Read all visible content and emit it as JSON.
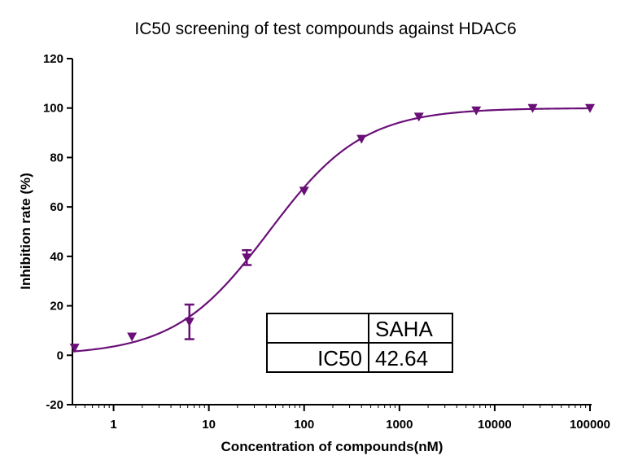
{
  "chart_data": {
    "type": "scatter",
    "title": "IC50 screening of test compounds against  HDAC6",
    "xlabel": "Concentration of compounds(nM)",
    "ylabel": "Inhibition rate (%)",
    "x_scale": "log",
    "xlim": [
      0.37,
      100000
    ],
    "ylim": [
      -20,
      120
    ],
    "x_ticks": [
      1,
      10,
      100,
      1000,
      10000,
      100000
    ],
    "x_tick_labels": [
      "1",
      "10",
      "100",
      "1000",
      "10000",
      "100000"
    ],
    "y_ticks": [
      -20,
      0,
      20,
      40,
      60,
      80,
      100,
      120
    ],
    "y_tick_labels": [
      "-20",
      "0",
      "20",
      "40",
      "60",
      "80",
      "100",
      "120"
    ],
    "grid": false,
    "series": [
      {
        "color": "#6a0f78",
        "marker": "triangle-down",
        "points": [
          {
            "x": 0.39,
            "y": 3
          },
          {
            "x": 1.56,
            "y": 7.5
          },
          {
            "x": 6.25,
            "y": 13.5,
            "err": 7
          },
          {
            "x": 25,
            "y": 39.5,
            "err": 3
          },
          {
            "x": 100,
            "y": 66.5
          },
          {
            "x": 400,
            "y": 87.5
          },
          {
            "x": 1600,
            "y": 96.5
          },
          {
            "x": 6400,
            "y": 99
          },
          {
            "x": 25000,
            "y": 100
          },
          {
            "x": 100000,
            "y": 100
          }
        ],
        "fit": {
          "bottom": 0,
          "top": 100,
          "ic50": 42.64,
          "hill": 0.88
        }
      }
    ],
    "table": {
      "header": [
        "",
        "SAHA"
      ],
      "rows": [
        [
          "IC50",
          "42.64"
        ]
      ]
    }
  }
}
